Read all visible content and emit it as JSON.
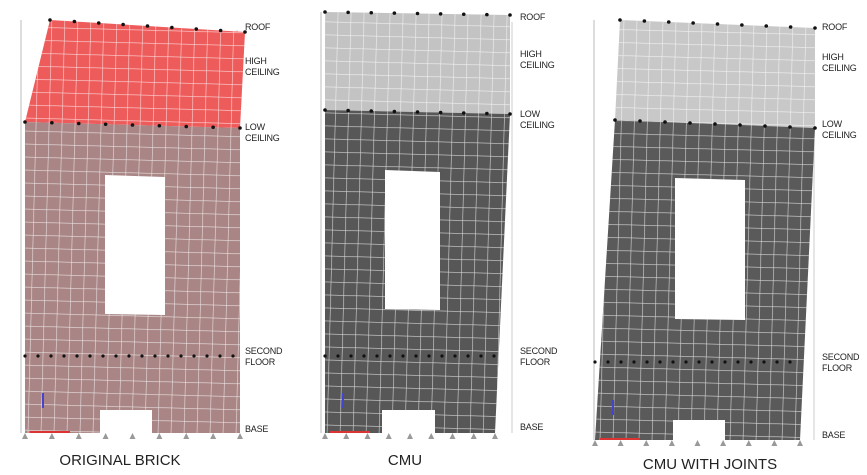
{
  "panels": [
    {
      "caption": "ORIGINAL BRICK",
      "levels": [
        "ROOF",
        "HIGH CEILING",
        "LOW CEILING",
        "SECOND FLOOR",
        "BASE"
      ]
    },
    {
      "caption": "CMU",
      "levels": [
        "ROOF",
        "HIGH CEILING",
        "LOW CEILING",
        "SECOND FLOOR",
        "BASE"
      ]
    },
    {
      "caption": "CMU WITH JOINTS",
      "levels": [
        "ROOF",
        "HIGH CEILING",
        "LOW CEILING",
        "SECOND FLOOR",
        "BASE"
      ]
    }
  ]
}
